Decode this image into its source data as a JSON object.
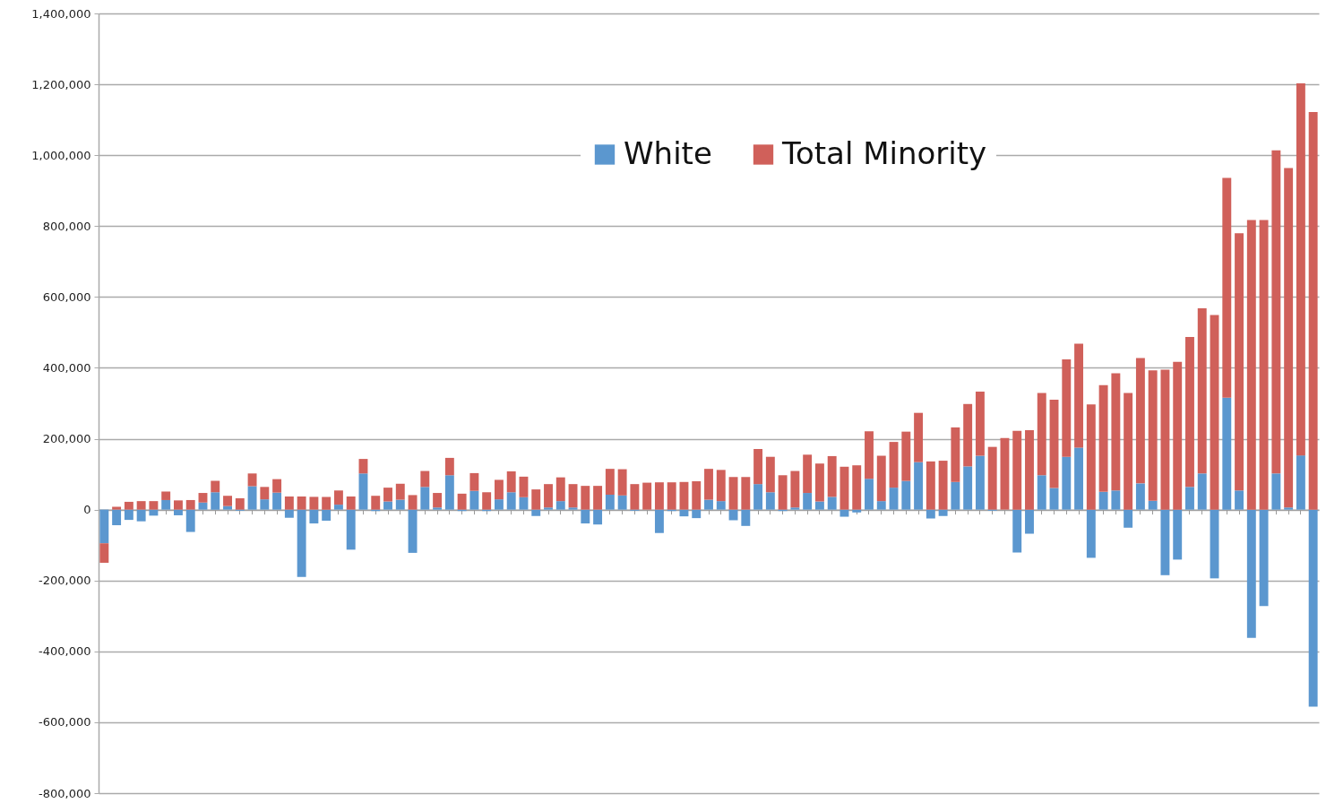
{
  "chart_data": {
    "type": "bar",
    "stacked": true,
    "legend": "top",
    "grid": "y",
    "tick_labels": "y",
    "categories": [
      null,
      null,
      null,
      null,
      null,
      null,
      null,
      null,
      null,
      null,
      null,
      null,
      null,
      null,
      null,
      null,
      null,
      null,
      null,
      null,
      null,
      null,
      null,
      null,
      null,
      null,
      null,
      null,
      null,
      null,
      null,
      null,
      null,
      null,
      null,
      null,
      null,
      null,
      null,
      null,
      null,
      null,
      null,
      null,
      null,
      null,
      null,
      null,
      null,
      null,
      null,
      null,
      null,
      null,
      null,
      null,
      null,
      null,
      null,
      null,
      null,
      null,
      null,
      null,
      null,
      null,
      null,
      null,
      null,
      null,
      null,
      null,
      null,
      null,
      null,
      null,
      null,
      null,
      null,
      null,
      null,
      null,
      null,
      null,
      null,
      null,
      null,
      null,
      null,
      null,
      null,
      null,
      null,
      null,
      null,
      null,
      null,
      null,
      null
    ],
    "ylim": [
      -800000,
      1400000
    ],
    "yticks": [
      {
        "value": -800000,
        "label": "-800,000"
      },
      {
        "value": -600000,
        "label": "-600,000"
      },
      {
        "value": -400000,
        "label": "-400,000"
      },
      {
        "value": -200000,
        "label": "-200,000"
      },
      0,
      {
        "value": 200000,
        "label": "200,000"
      },
      {
        "value": 400000,
        "label": "400,000"
      },
      {
        "value": 600000,
        "label": "600,000"
      },
      {
        "value": 800000,
        "label": "800,000"
      },
      {
        "value": 1000000,
        "label": "1,000,000"
      },
      {
        "value": 1200000,
        "label": "1,200,000"
      },
      {
        "value": 1400000,
        "label": "1,400,000"
      }
    ],
    "series": [
      {
        "name": "White",
        "color": "#5b97cf",
        "values": [
          -95000,
          -44000,
          -29000,
          -33000,
          -17000,
          27000,
          -16000,
          -63000,
          20000,
          49000,
          10000,
          -3000,
          66000,
          29000,
          48000,
          -23000,
          -190000,
          -39000,
          -31000,
          14000,
          -113000,
          102000,
          -4000,
          23000,
          28000,
          -122000,
          64000,
          6000,
          97000,
          -4000,
          53000,
          -4000,
          29000,
          49000,
          35000,
          -18000,
          6000,
          24000,
          6000,
          -39000,
          -42000,
          42000,
          40000,
          -3000,
          0,
          -66000,
          -4000,
          -19000,
          -24000,
          28000,
          24000,
          -30000,
          -46000,
          72000,
          49000,
          -4000,
          6000,
          47000,
          23000,
          36000,
          -20000,
          -8000,
          87000,
          24000,
          62000,
          81000,
          134000,
          -25000,
          -18000,
          78000,
          122000,
          152000,
          -3000,
          0,
          -121000,
          -68000,
          97000,
          61000,
          149000,
          175000,
          -136000,
          50000,
          54000,
          -51000,
          74000,
          25000,
          -185000,
          -141000,
          64000,
          102000,
          -194000,
          316000,
          54000,
          -362000,
          -272000,
          102000,
          6000,
          153000,
          -556000
        ]
      },
      {
        "name": "Total Minority",
        "color": "#d0605a",
        "values": [
          -55000,
          8000,
          22000,
          24000,
          24000,
          24000,
          26000,
          27000,
          27000,
          32000,
          29000,
          32000,
          36000,
          35000,
          38000,
          37000,
          37000,
          36000,
          36000,
          40000,
          37000,
          41000,
          39000,
          39000,
          45000,
          41000,
          45000,
          41000,
          49000,
          45000,
          50000,
          49000,
          55000,
          59000,
          58000,
          57000,
          66000,
          67000,
          66000,
          67000,
          67000,
          73000,
          74000,
          72000,
          76000,
          77000,
          77000,
          78000,
          80000,
          87000,
          88000,
          92000,
          92000,
          99000,
          100000,
          97000,
          103000,
          108000,
          107000,
          115000,
          121000,
          125000,
          134000,
          128000,
          129000,
          139000,
          139000,
          136000,
          138000,
          154000,
          176000,
          181000,
          177000,
          202000,
          222000,
          224000,
          232000,
          249000,
          275000,
          293000,
          297000,
          301000,
          331000,
          329000,
          354000,
          368000,
          395000,
          417000,
          423000,
          466000,
          549000,
          620000,
          726000,
          817000,
          817000,
          912000,
          958000,
          1050000,
          1122000
        ]
      }
    ]
  }
}
